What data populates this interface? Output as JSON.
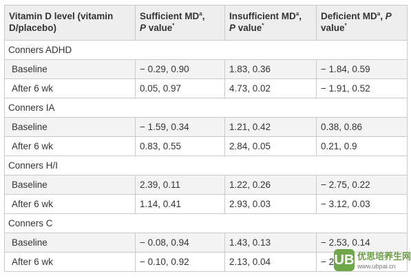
{
  "table": {
    "headers": [
      {
        "line1": "Vitamin D level (vitamin",
        "line2": "D/placebo)"
      },
      {
        "line1": "Sufficient MD",
        "sup1": "a",
        "line1b": ",",
        "line2_italic": "P",
        "line2_rest": " value",
        "sup2": "*"
      },
      {
        "line1": "Insufficient MD",
        "sup1": "a",
        "line1b": ",",
        "line2_italic": "P",
        "line2_rest": " value",
        "sup2": "*"
      },
      {
        "line1": "Deficient MD",
        "sup1": "a",
        "line1b": ",",
        "line1_italic": "P",
        "line2_rest": "value",
        "sup2": "*"
      }
    ],
    "groups": [
      {
        "name": "Conners ADHD",
        "rows": [
          {
            "label": "Baseline",
            "cells": [
              "− 0.29, 0.90",
              "1.83, 0.36",
              "− 1.84, 0.59"
            ]
          },
          {
            "label": "After 6 wk",
            "cells": [
              "0.05, 0.97",
              "4.73, 0.02",
              "− 1.91, 0.52"
            ]
          }
        ]
      },
      {
        "name": "Conners IA",
        "rows": [
          {
            "label": "Baseline",
            "cells": [
              "− 1.59, 0.34",
              "1.21, 0.42",
              "0.38, 0.86"
            ]
          },
          {
            "label": "After 6 wk",
            "cells": [
              "0.83, 0.55",
              "2.84, 0.05",
              "0.21, 0.9"
            ]
          }
        ]
      },
      {
        "name": "Conners H/I",
        "rows": [
          {
            "label": "Baseline",
            "cells": [
              "2.39, 0.11",
              "1.22, 0.26",
              "− 2.75, 0.22"
            ]
          },
          {
            "label": "After 6 wk",
            "cells": [
              "1.14, 0.41",
              "2.93, 0.03",
              "− 3.12, 0.03"
            ]
          }
        ]
      },
      {
        "name": "Conners C",
        "rows": [
          {
            "label": "Baseline",
            "cells": [
              "− 0.08, 0.94",
              "1.43, 0.13",
              "− 2.53, 0.14"
            ]
          },
          {
            "label": "After 6 wk",
            "cells": [
              "− 0.10, 0.92",
              "2.13, 0.04",
              "− 2.2"
            ]
          }
        ]
      }
    ]
  },
  "watermark": {
    "logo": "UB",
    "title": "优思培养生网",
    "url": "www.ubpai.cn"
  }
}
